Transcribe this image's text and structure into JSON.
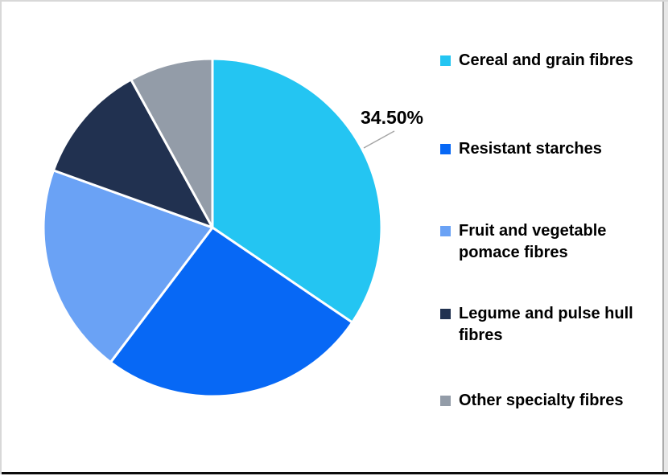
{
  "chart_data": {
    "type": "pie",
    "title": "",
    "legend_position": "right",
    "direction": "clockwise",
    "start_angle_deg": 0,
    "slice_border_color": "#FFFFFF",
    "leader_line_color": "#A6A6A6",
    "slices": [
      {
        "label": "Cereal and grain fibres",
        "value": 34.5,
        "color": "#24C5F2"
      },
      {
        "label": "Resistant starches",
        "value": 25.8,
        "color": "#0768F5"
      },
      {
        "label": "Fruit and vegetable pomace fibres",
        "value": 20.2,
        "color": "#6AA2F5"
      },
      {
        "label": "Legume and pulse hull fibres",
        "value": 11.5,
        "color": "#213150"
      },
      {
        "label": "Other specialty fibres",
        "value": 8.0,
        "color": "#939CA8"
      }
    ],
    "data_label": {
      "slice_index": 0,
      "text": "34.50%"
    }
  }
}
